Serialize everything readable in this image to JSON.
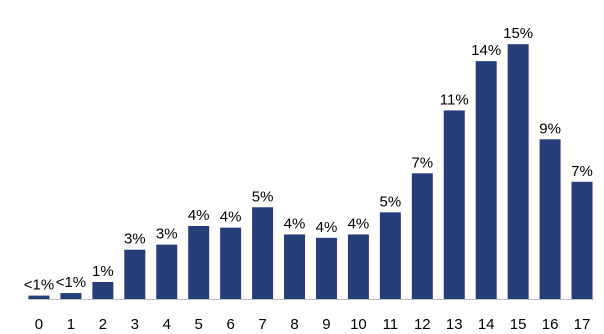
{
  "chart_data": {
    "type": "bar",
    "categories": [
      "0",
      "1",
      "2",
      "3",
      "4",
      "5",
      "6",
      "7",
      "8",
      "9",
      "10",
      "11",
      "12",
      "13",
      "14",
      "15",
      "16",
      "17"
    ],
    "values": [
      0.2,
      0.35,
      1.0,
      2.9,
      3.2,
      4.3,
      4.2,
      5.4,
      3.8,
      3.6,
      3.8,
      5.1,
      7.4,
      11.1,
      14.0,
      15.0,
      9.4,
      6.9
    ],
    "value_labels": [
      "<1%",
      "<1%",
      "1%",
      "3%",
      "3%",
      "4%",
      "4%",
      "5%",
      "4%",
      "4%",
      "4%",
      "5%",
      "7%",
      "11%",
      "14%",
      "15%",
      "9%",
      "7%"
    ],
    "color": "#263d7a",
    "ylim": [
      0,
      17.6
    ]
  }
}
